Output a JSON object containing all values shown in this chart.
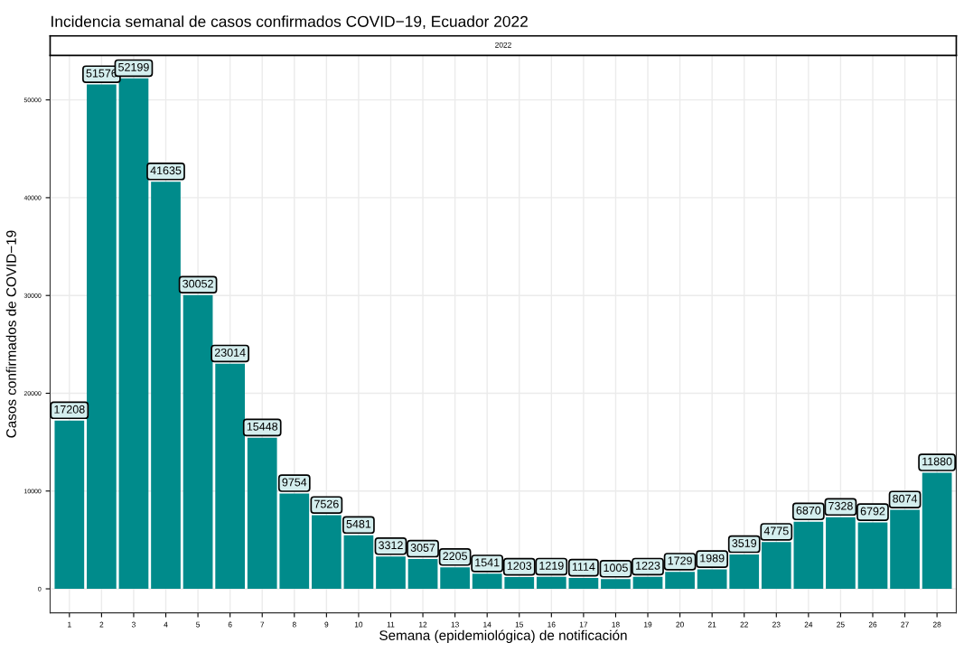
{
  "chart_data": {
    "type": "bar",
    "title": "Incidencia semanal de casos confirmados COVID−19, Ecuador 2022",
    "subtitle": "2022",
    "xlabel": "Semana (epidemiológica) de notificación",
    "ylabel": "Casos confirmados de COVID−19",
    "categories": [
      "1",
      "2",
      "3",
      "4",
      "5",
      "6",
      "7",
      "8",
      "9",
      "10",
      "11",
      "12",
      "13",
      "14",
      "15",
      "16",
      "17",
      "18",
      "19",
      "20",
      "21",
      "22",
      "23",
      "24",
      "25",
      "26",
      "27",
      "28"
    ],
    "values": [
      17208,
      51576,
      52199,
      41635,
      30052,
      23014,
      15448,
      9754,
      7526,
      5481,
      3312,
      3057,
      2205,
      1541,
      1203,
      1219,
      1114,
      1005,
      1223,
      1729,
      1989,
      3519,
      4775,
      6870,
      7328,
      6792,
      8074,
      11880
    ],
    "color": "#008b8b",
    "data_labels": true,
    "ylim": [
      -2460,
      54550
    ],
    "yticks": [
      0,
      10000,
      20000,
      30000,
      40000,
      50000
    ],
    "grid": true
  }
}
